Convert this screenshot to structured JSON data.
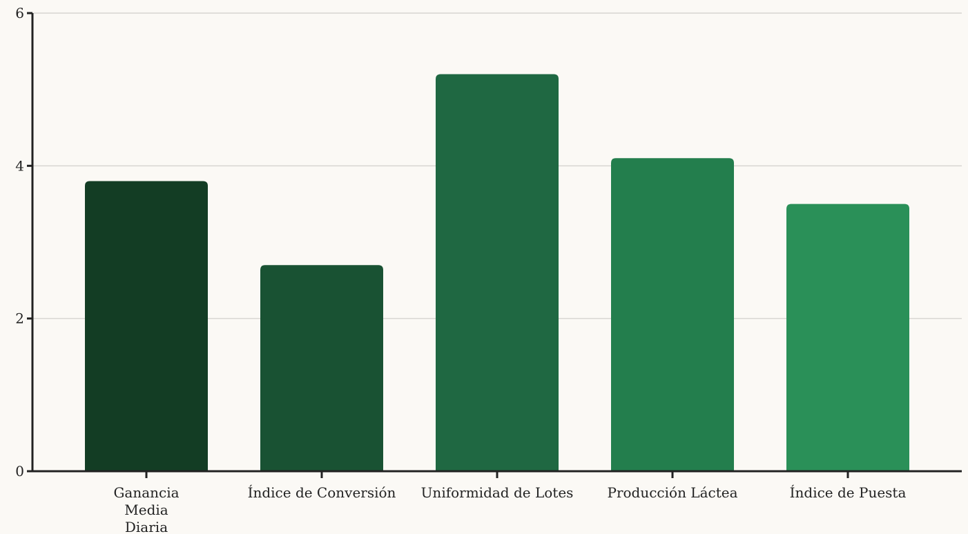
{
  "chart_data": {
    "type": "bar",
    "title": "",
    "xlabel": "",
    "ylabel": "",
    "categories": [
      "Ganancia Media Diaria",
      "Índice de Conversión",
      "Uniformidad de Lotes",
      "Producción Láctea",
      "Índice de Puesta"
    ],
    "category_lines": [
      [
        "Ganancia",
        "Media",
        "Diaria"
      ],
      [
        "Índice de Conversión"
      ],
      [
        "Uniformidad de Lotes"
      ],
      [
        "Producción Láctea"
      ],
      [
        "Índice de Puesta"
      ]
    ],
    "values": [
      3.8,
      2.7,
      5.2,
      4.1,
      3.5
    ],
    "colors": [
      "#133d24",
      "#195233",
      "#1f6842",
      "#237e4d",
      "#2a9058"
    ],
    "ylim": [
      0,
      6
    ],
    "yticks": [
      0,
      2,
      4,
      6
    ],
    "grid": true,
    "legend": "none"
  }
}
